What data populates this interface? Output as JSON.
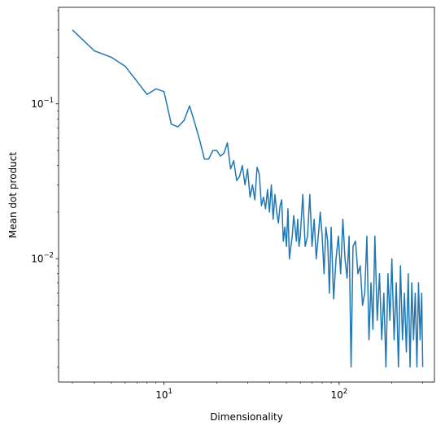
{
  "chart_data": {
    "type": "line",
    "xlabel": "Dimensionality",
    "ylabel": "Mean dot product",
    "xscale": "log",
    "yscale": "log",
    "xlim": [
      2.5,
      350
    ],
    "ylim": [
      0.0016,
      0.42
    ],
    "grid": false,
    "legend": "none",
    "x_ticks": [
      {
        "value": 10,
        "base": "10",
        "exp": "1"
      },
      {
        "value": 100,
        "base": "10",
        "exp": "2"
      }
    ],
    "y_ticks": [
      {
        "value": 0.01,
        "base": "10",
        "exp": "−2"
      },
      {
        "value": 0.1,
        "base": "10",
        "exp": "−1"
      }
    ],
    "series": [
      {
        "color": "#1f77b4",
        "x": [
          3,
          4,
          5,
          6,
          7,
          8,
          9,
          10,
          11,
          12,
          13,
          14,
          15,
          16,
          17,
          18,
          19,
          20,
          21,
          22,
          23,
          24,
          25,
          26,
          27,
          28,
          29,
          30,
          31,
          32,
          33,
          34,
          35,
          36,
          37,
          38,
          39,
          40,
          41,
          42,
          43,
          44,
          45,
          46,
          47,
          48,
          49,
          50,
          51,
          52,
          53,
          54,
          55,
          56,
          57,
          58,
          59,
          60,
          62,
          64,
          66,
          68,
          70,
          72,
          74,
          76,
          78,
          80,
          82,
          84,
          86,
          88,
          90,
          93,
          96,
          99,
          102,
          105,
          108,
          111,
          114,
          117,
          120,
          124,
          128,
          132,
          136,
          140,
          144,
          148,
          152,
          156,
          160,
          165,
          170,
          175,
          180,
          185,
          190,
          195,
          200,
          206,
          212,
          218,
          224,
          230,
          236,
          242,
          248,
          254,
          260,
          266,
          272,
          278,
          284,
          290,
          296,
          300
        ],
        "y": [
          0.3,
          0.22,
          0.2,
          0.175,
          0.14,
          0.115,
          0.125,
          0.12,
          0.074,
          0.071,
          0.078,
          0.097,
          0.075,
          0.058,
          0.044,
          0.044,
          0.05,
          0.05,
          0.046,
          0.048,
          0.056,
          0.038,
          0.043,
          0.032,
          0.034,
          0.04,
          0.03,
          0.038,
          0.025,
          0.03,
          0.024,
          0.039,
          0.035,
          0.022,
          0.025,
          0.021,
          0.028,
          0.02,
          0.03,
          0.018,
          0.026,
          0.02,
          0.017,
          0.022,
          0.024,
          0.013,
          0.016,
          0.012,
          0.021,
          0.01,
          0.012,
          0.014,
          0.019,
          0.016,
          0.013,
          0.018,
          0.012,
          0.014,
          0.026,
          0.012,
          0.014,
          0.026,
          0.012,
          0.018,
          0.01,
          0.014,
          0.02,
          0.014,
          0.008,
          0.016,
          0.013,
          0.006,
          0.016,
          0.0055,
          0.01,
          0.014,
          0.008,
          0.018,
          0.01,
          0.0075,
          0.014,
          0.002,
          0.012,
          0.013,
          0.008,
          0.009,
          0.005,
          0.006,
          0.014,
          0.003,
          0.007,
          0.0035,
          0.014,
          0.004,
          0.008,
          0.003,
          0.006,
          0.002,
          0.008,
          0.004,
          0.01,
          0.003,
          0.007,
          0.002,
          0.009,
          0.003,
          0.006,
          0.0025,
          0.008,
          0.002,
          0.007,
          0.003,
          0.006,
          0.002,
          0.007,
          0.003,
          0.006,
          0.002
        ]
      }
    ]
  }
}
